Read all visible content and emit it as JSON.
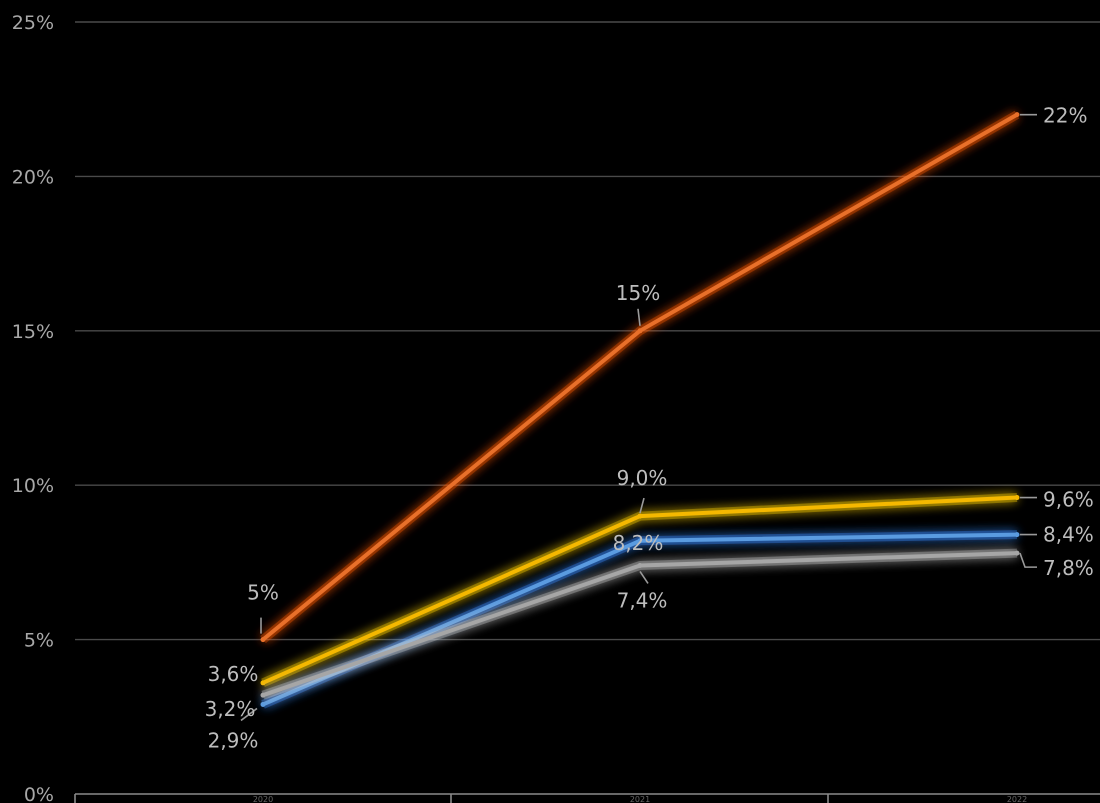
{
  "chart_data": {
    "type": "line",
    "categories": [
      "2020",
      "2021",
      "2022"
    ],
    "yticks": [
      "0%",
      "5%",
      "10%",
      "15%",
      "20%",
      "25%"
    ],
    "ylim": [
      0,
      25
    ],
    "grid": true,
    "series": [
      {
        "color": "#e8702a",
        "glow": "#ff5a00",
        "values": [
          5,
          15,
          22
        ],
        "labels": [
          "5%",
          "15%",
          "22%"
        ]
      },
      {
        "color": "#f5b800",
        "glow": "#ffd000",
        "values": [
          3.6,
          9.0,
          9.6
        ],
        "labels": [
          "3,6%",
          "9,0%",
          "9,6%"
        ]
      },
      {
        "color": "#5a9be0",
        "glow": "#3a8dff",
        "values": [
          2.9,
          8.2,
          8.4
        ],
        "labels": [
          "2,9%",
          "8,2%",
          "8,4%"
        ]
      },
      {
        "color": "#a6a6a6",
        "glow": "#c8c8c8",
        "values": [
          3.2,
          7.4,
          7.8
        ],
        "labels": [
          "3,2%",
          "7,4%",
          "7,8%"
        ]
      }
    ]
  }
}
